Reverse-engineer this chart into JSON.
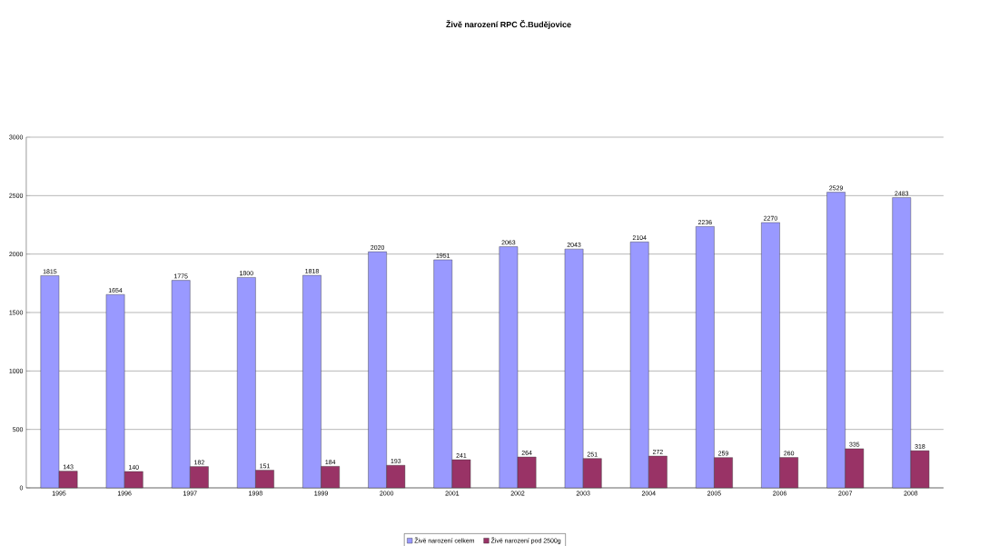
{
  "chart_data": {
    "type": "bar",
    "title": "Živě narození RPC Č.Budějovice",
    "categories": [
      "1995",
      "1996",
      "1997",
      "1998",
      "1999",
      "2000",
      "2001",
      "2002",
      "2003",
      "2004",
      "2005",
      "2006",
      "2007",
      "2008"
    ],
    "series": [
      {
        "name": "Živě narození celkem",
        "color": "#9999ff",
        "values": [
          1815,
          1654,
          1775,
          1800,
          1818,
          2020,
          1951,
          2063,
          2043,
          2104,
          2236,
          2270,
          2529,
          2483
        ]
      },
      {
        "name": "Živě narození pod 2500g",
        "color": "#993366",
        "values": [
          143,
          140,
          182,
          151,
          184,
          193,
          241,
          264,
          251,
          272,
          259,
          260,
          335,
          318
        ]
      }
    ],
    "ylim": [
      0,
      3000
    ],
    "yticks": [
      0,
      500,
      1000,
      1500,
      2000,
      2500,
      3000
    ],
    "grid": "y",
    "legend": "bottom",
    "data_labels": true
  }
}
